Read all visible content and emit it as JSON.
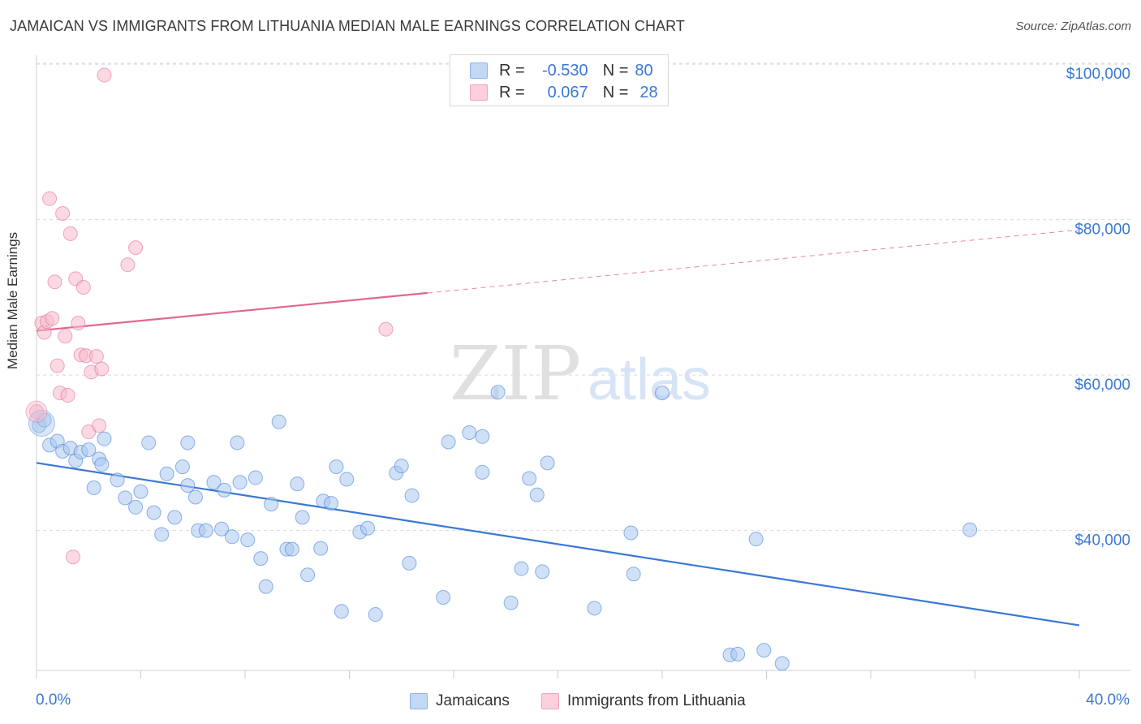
{
  "header": {
    "title": "JAMAICAN VS IMMIGRANTS FROM LITHUANIA MEDIAN MALE EARNINGS CORRELATION CHART",
    "source": "Source: ZipAtlas.com"
  },
  "watermark": {
    "zip": "ZIP",
    "atlas": "atlas"
  },
  "legend": {
    "rows": [
      {
        "r_label": "R =",
        "r_value": "-0.530",
        "n_label": "N =",
        "n_value": "80",
        "color": "#a9c8f0"
      },
      {
        "r_label": "R =",
        "r_value": "0.067",
        "n_label": "N =",
        "n_value": "28",
        "color": "#f7b9cb"
      }
    ]
  },
  "bottom_legend": [
    {
      "label": "Jamaicans",
      "color": "#a9c8f0"
    },
    {
      "label": "Immigrants from Lithuania",
      "color": "#f7b9cb"
    }
  ],
  "chart_data": {
    "type": "scatter",
    "title": "JAMAICAN VS IMMIGRANTS FROM LITHUANIA MEDIAN MALE EARNINGS CORRELATION CHART",
    "xlabel": "",
    "ylabel": "Median Male Earnings",
    "xlim": [
      0,
      40
    ],
    "ylim": [
      22000,
      102000
    ],
    "x_tick_labels": [
      "0.0%",
      "40.0%"
    ],
    "y_ticks": [
      40000,
      60000,
      80000,
      100000
    ],
    "y_tick_labels": [
      "$40,000",
      "$60,000",
      "$80,000",
      "$100,000"
    ],
    "grid": true,
    "legend_position": "top-center",
    "series": [
      {
        "name": "Jamaicans",
        "color": "#3a78d4",
        "fill": "#a9c8f0",
        "points": [
          [
            0.1,
            53500
          ],
          [
            0.3,
            54200
          ],
          [
            0.5,
            51000
          ],
          [
            0.8,
            51500
          ],
          [
            1.0,
            50200
          ],
          [
            1.3,
            50600
          ],
          [
            1.5,
            49000
          ],
          [
            1.7,
            50100
          ],
          [
            2.0,
            50400
          ],
          [
            2.4,
            49200
          ],
          [
            2.5,
            48500
          ],
          [
            2.2,
            45500
          ],
          [
            2.6,
            51800
          ],
          [
            3.1,
            46500
          ],
          [
            3.4,
            44200
          ],
          [
            3.8,
            43000
          ],
          [
            4.0,
            45000
          ],
          [
            4.3,
            51300
          ],
          [
            4.5,
            42300
          ],
          [
            4.8,
            39500
          ],
          [
            5.0,
            47300
          ],
          [
            5.3,
            41700
          ],
          [
            5.6,
            48200
          ],
          [
            5.8,
            45800
          ],
          [
            5.8,
            51300
          ],
          [
            6.1,
            44300
          ],
          [
            6.2,
            40000
          ],
          [
            6.5,
            40000
          ],
          [
            6.8,
            46200
          ],
          [
            7.1,
            40200
          ],
          [
            7.2,
            45200
          ],
          [
            7.5,
            39200
          ],
          [
            7.7,
            51300
          ],
          [
            7.8,
            46200
          ],
          [
            8.1,
            38800
          ],
          [
            8.4,
            46800
          ],
          [
            8.6,
            36400
          ],
          [
            8.8,
            32800
          ],
          [
            9.0,
            43400
          ],
          [
            9.3,
            54000
          ],
          [
            9.6,
            37600
          ],
          [
            9.8,
            37600
          ],
          [
            10.0,
            46000
          ],
          [
            10.2,
            41700
          ],
          [
            10.4,
            34300
          ],
          [
            10.9,
            37700
          ],
          [
            11.0,
            43800
          ],
          [
            11.3,
            43500
          ],
          [
            11.5,
            48200
          ],
          [
            11.7,
            29600
          ],
          [
            11.9,
            46600
          ],
          [
            12.4,
            39800
          ],
          [
            12.7,
            40300
          ],
          [
            13.0,
            29200
          ],
          [
            13.8,
            47400
          ],
          [
            14.0,
            48300
          ],
          [
            14.3,
            35800
          ],
          [
            14.4,
            44500
          ],
          [
            15.6,
            31400
          ],
          [
            15.8,
            51400
          ],
          [
            16.6,
            52600
          ],
          [
            17.1,
            52100
          ],
          [
            17.1,
            47500
          ],
          [
            17.7,
            57800
          ],
          [
            18.2,
            30700
          ],
          [
            18.6,
            35100
          ],
          [
            18.9,
            46700
          ],
          [
            19.2,
            44600
          ],
          [
            19.4,
            34700
          ],
          [
            19.6,
            48700
          ],
          [
            21.4,
            30000
          ],
          [
            22.8,
            39700
          ],
          [
            22.9,
            34400
          ],
          [
            24.0,
            57700
          ],
          [
            26.6,
            24000
          ],
          [
            26.9,
            24100
          ],
          [
            27.6,
            38900
          ],
          [
            27.9,
            24600
          ],
          [
            28.6,
            22900
          ],
          [
            35.8,
            40100
          ]
        ],
        "trend": {
          "x": [
            0,
            40
          ],
          "y": [
            48700,
            27800
          ]
        }
      },
      {
        "name": "Immigrants from Lithuania",
        "color": "#e36690",
        "fill": "#f7b9cb",
        "points": [
          [
            0.0,
            55300
          ],
          [
            0.2,
            66700
          ],
          [
            0.3,
            65500
          ],
          [
            0.4,
            66900
          ],
          [
            0.5,
            82700
          ],
          [
            0.6,
            67300
          ],
          [
            0.7,
            72000
          ],
          [
            0.8,
            61200
          ],
          [
            0.9,
            57700
          ],
          [
            1.0,
            80800
          ],
          [
            1.1,
            65000
          ],
          [
            1.2,
            57400
          ],
          [
            1.3,
            78200
          ],
          [
            1.4,
            36600
          ],
          [
            1.5,
            72400
          ],
          [
            1.6,
            66700
          ],
          [
            1.7,
            62600
          ],
          [
            1.8,
            71300
          ],
          [
            1.9,
            62500
          ],
          [
            2.0,
            52700
          ],
          [
            2.1,
            60400
          ],
          [
            2.3,
            62400
          ],
          [
            2.4,
            53500
          ],
          [
            2.5,
            60800
          ],
          [
            2.6,
            98600
          ],
          [
            3.5,
            74200
          ],
          [
            3.8,
            76400
          ],
          [
            13.4,
            65900
          ]
        ],
        "trend": {
          "x": [
            0,
            40
          ],
          "y": [
            65700,
            78700
          ]
        },
        "trend_solid_until_x": 15
      }
    ]
  }
}
